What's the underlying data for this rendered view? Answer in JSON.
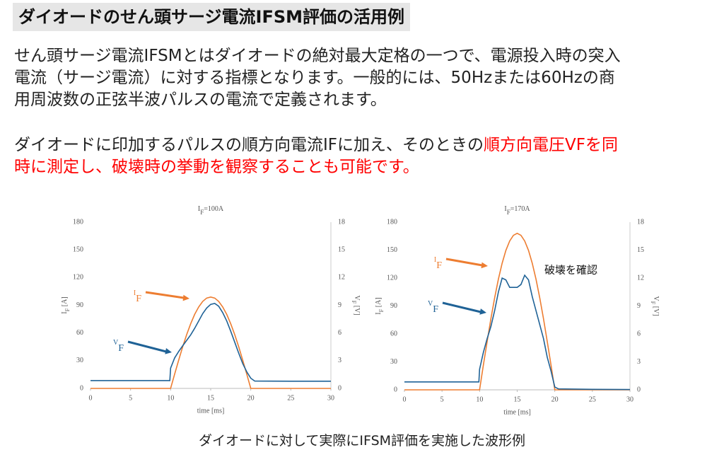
{
  "header": {
    "title": "ダイオードのせん頭サージ電流IFSM評価の活用例"
  },
  "paragraphs": [
    {
      "lines": [
        [
          {
            "text": "せん頭サージ電流IFSMとはダイオードの絶対最大定格の一つで、電源投入時の突入",
            "color": "#222222"
          }
        ],
        [
          {
            "text": "電流（サージ電流）に対する指標となります。一般的には、50Hzまたは60Hzの商",
            "color": "#222222"
          }
        ],
        [
          {
            "text": "用周波数の正弦半波パルスの電流で定義されます。",
            "color": "#222222"
          }
        ]
      ]
    },
    {
      "lines": [
        [
          {
            "text": "ダイオードに印加するパルスの順方向電流IFに加え、そのときの",
            "color": "#222222"
          },
          {
            "text": "順方向電圧VFを同",
            "color": "#ff0000"
          }
        ],
        [
          {
            "text": "時に測定し、破壊時の挙動を観察することも可能です。",
            "color": "#ff0000"
          }
        ]
      ]
    }
  ],
  "caption": "ダイオードに対して実際にIFSM評価を実施した波形例",
  "chart_data": [
    {
      "type": "line",
      "title": [
        "I",
        "F",
        "=100A"
      ],
      "x_label": "time [ms]",
      "y_label": [
        "I",
        "F",
        " [A]"
      ],
      "y2_label": [
        "V",
        "F",
        " [V]"
      ],
      "x": [
        0,
        5,
        9.9,
        10,
        10.5,
        11,
        11.5,
        12,
        12.5,
        13,
        13.5,
        14,
        14.5,
        15,
        15.5,
        16,
        16.5,
        17,
        17.5,
        18,
        18.5,
        19,
        19.5,
        20,
        20.5,
        25,
        30
      ],
      "series": [
        {
          "name": [
            "I",
            "F"
          ],
          "color": "#ed7d31",
          "values": [
            0,
            0,
            0,
            0,
            15.5,
            30.6,
            44.9,
            58.2,
            70,
            80.1,
            88.2,
            94.2,
            97.8,
            99,
            97.8,
            94.2,
            88.2,
            80.1,
            70,
            58.2,
            44.9,
            30.6,
            15.5,
            0,
            0,
            0,
            0
          ]
        },
        {
          "name": [
            "V",
            "F"
          ],
          "color": "#1f6296",
          "axis": "y2",
          "values": [
            0.85,
            0.85,
            0.85,
            2.2,
            3.3,
            4.0,
            4.6,
            5.2,
            5.8,
            6.5,
            7.3,
            8.1,
            8.7,
            9.1,
            9.2,
            8.9,
            8.2,
            7.3,
            6.2,
            5.0,
            3.8,
            2.7,
            1.8,
            1.1,
            0.8,
            0.78,
            0.78
          ]
        }
      ],
      "annotations": [],
      "xlim": [
        0,
        30
      ],
      "xticks": [
        0,
        5,
        10,
        15,
        20,
        25,
        30
      ],
      "ylim": [
        0,
        180
      ],
      "yticks": [
        0,
        30,
        60,
        90,
        120,
        150,
        180
      ],
      "y2lim": [
        0,
        18
      ],
      "y2ticks": [
        0,
        3,
        6,
        9,
        12,
        15,
        18
      ],
      "grid": false
    },
    {
      "type": "line",
      "title": [
        "I",
        "F",
        "=170A"
      ],
      "x_label": "time [ms]",
      "y_label": [
        "I",
        "F",
        " [A]"
      ],
      "y2_label": [
        "V",
        "F",
        " [V]"
      ],
      "x": [
        0,
        5,
        9.9,
        10,
        10.5,
        11,
        11.5,
        12,
        12.5,
        13,
        13.5,
        14,
        14.5,
        15,
        15.5,
        16,
        16.5,
        17,
        17.5,
        18,
        18.5,
        19,
        19.5,
        20,
        20.5,
        25,
        30
      ],
      "series": [
        {
          "name": [
            "I",
            "F"
          ],
          "color": "#ed7d31",
          "values": [
            0,
            0,
            0,
            0,
            26.3,
            51.9,
            76.3,
            98.7,
            118.8,
            135.9,
            149.7,
            159.8,
            165.9,
            168,
            165.9,
            159.8,
            149.7,
            135.9,
            118.8,
            98.7,
            76.3,
            51.9,
            26.3,
            0,
            0,
            0,
            0
          ]
        },
        {
          "name": [
            "V",
            "F"
          ],
          "color": "#1f6296",
          "axis": "y2",
          "values": [
            0.85,
            0.85,
            0.85,
            2.2,
            4.0,
            5.5,
            6.8,
            8.5,
            10.5,
            12,
            11.8,
            11,
            11,
            11,
            11.3,
            12.3,
            11.8,
            10,
            8.5,
            7,
            5.5,
            3.5,
            2,
            0.3,
            0.1,
            0.05,
            0.03
          ]
        }
      ],
      "annotations": [
        "破壊を確認"
      ],
      "xlim": [
        0,
        30
      ],
      "xticks": [
        0,
        5,
        10,
        15,
        20,
        25,
        30
      ],
      "ylim": [
        0,
        180
      ],
      "yticks": [
        0,
        30,
        60,
        90,
        120,
        150,
        180
      ],
      "y2lim": [
        0,
        18
      ],
      "y2ticks": [
        0,
        3,
        6,
        9,
        12,
        15,
        18
      ],
      "grid": false
    }
  ]
}
